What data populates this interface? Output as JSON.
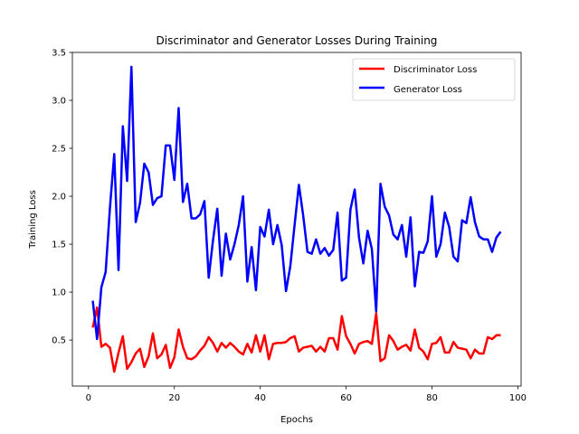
{
  "chart_data": {
    "type": "line",
    "title": "Discriminator and Generator Losses During Training",
    "xlabel": "Epochs",
    "ylabel": "Training Loss",
    "xlim": [
      -3.75,
      100.75
    ],
    "ylim": [
      0.02,
      3.5
    ],
    "xticks": [
      0,
      20,
      40,
      60,
      80,
      100
    ],
    "yticks": [
      0.5,
      1.0,
      1.5,
      2.0,
      2.5,
      3.0,
      3.5
    ],
    "grid": false,
    "legend_position": "top-right",
    "x": [
      1,
      2,
      3,
      4,
      5,
      6,
      7,
      8,
      9,
      10,
      11,
      12,
      13,
      14,
      15,
      16,
      17,
      18,
      19,
      20,
      21,
      22,
      23,
      24,
      25,
      26,
      27,
      28,
      29,
      30,
      31,
      32,
      33,
      34,
      35,
      36,
      37,
      38,
      39,
      40,
      41,
      42,
      43,
      44,
      45,
      46,
      47,
      48,
      49,
      50,
      51,
      52,
      53,
      54,
      55,
      56,
      57,
      58,
      59,
      60,
      61,
      62,
      63,
      64,
      65,
      66,
      67,
      68,
      69,
      70,
      71,
      72,
      73,
      74,
      75,
      76,
      77,
      78,
      79,
      80,
      81,
      82,
      83,
      84,
      85,
      86,
      87,
      88,
      89,
      90,
      91,
      92,
      93,
      94,
      95,
      96
    ],
    "series": [
      {
        "name": "Discriminator Loss",
        "color": "#ff0000",
        "values": [
          0.63,
          0.84,
          0.43,
          0.46,
          0.42,
          0.17,
          0.37,
          0.54,
          0.2,
          0.27,
          0.36,
          0.41,
          0.22,
          0.33,
          0.57,
          0.31,
          0.35,
          0.45,
          0.21,
          0.32,
          0.61,
          0.43,
          0.31,
          0.3,
          0.33,
          0.39,
          0.44,
          0.53,
          0.47,
          0.38,
          0.47,
          0.42,
          0.47,
          0.43,
          0.38,
          0.35,
          0.46,
          0.37,
          0.55,
          0.38,
          0.55,
          0.3,
          0.46,
          0.47,
          0.47,
          0.48,
          0.52,
          0.54,
          0.38,
          0.42,
          0.43,
          0.44,
          0.38,
          0.43,
          0.38,
          0.52,
          0.52,
          0.4,
          0.75,
          0.54,
          0.46,
          0.36,
          0.46,
          0.48,
          0.49,
          0.46,
          0.78,
          0.28,
          0.31,
          0.55,
          0.49,
          0.4,
          0.43,
          0.45,
          0.39,
          0.61,
          0.42,
          0.38,
          0.3,
          0.46,
          0.47,
          0.53,
          0.37,
          0.37,
          0.48,
          0.42,
          0.41,
          0.4,
          0.31,
          0.4,
          0.36,
          0.36,
          0.53,
          0.51,
          0.55,
          0.55
        ]
      },
      {
        "name": "Generator Loss",
        "color": "#0000ff",
        "values": [
          0.91,
          0.51,
          1.05,
          1.21,
          1.88,
          2.44,
          1.23,
          2.73,
          2.16,
          3.35,
          1.73,
          1.93,
          2.34,
          2.25,
          1.91,
          1.98,
          2.0,
          2.53,
          2.53,
          2.17,
          2.92,
          1.94,
          2.13,
          1.77,
          1.77,
          1.81,
          1.95,
          1.15,
          1.54,
          1.87,
          1.17,
          1.61,
          1.34,
          1.5,
          1.7,
          2.0,
          1.11,
          1.47,
          1.02,
          1.68,
          1.58,
          1.86,
          1.5,
          1.7,
          1.49,
          1.01,
          1.27,
          1.7,
          2.12,
          1.8,
          1.42,
          1.4,
          1.55,
          1.4,
          1.46,
          1.38,
          1.44,
          1.83,
          1.12,
          1.15,
          1.86,
          2.07,
          1.57,
          1.3,
          1.64,
          1.45,
          0.8,
          2.13,
          1.89,
          1.8,
          1.6,
          1.55,
          1.7,
          1.37,
          1.78,
          1.06,
          1.42,
          1.41,
          1.53,
          2.0,
          1.37,
          1.5,
          1.83,
          1.68,
          1.37,
          1.32,
          1.75,
          1.72,
          1.99,
          1.73,
          1.58,
          1.55,
          1.55,
          1.42,
          1.57,
          1.63
        ]
      }
    ]
  }
}
